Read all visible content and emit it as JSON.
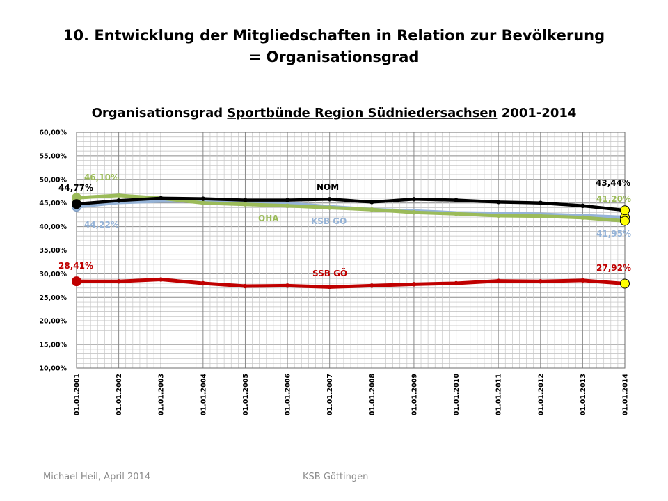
{
  "slide": {
    "title_line1": "10. Entwicklung der Mitgliedschaften in Relation zur Bevölkerung",
    "title_line2": "= Organisationsgrad"
  },
  "footer": {
    "author": "Michael Heil, April 2014",
    "org": "KSB Göttingen"
  },
  "chart_data": {
    "type": "line",
    "title_prefix": "Organisationsgrad ",
    "title_underlined": "Sportbünde Region Südniedersachsen",
    "title_suffix": " 2001-2014",
    "categories": [
      "01.01.2001",
      "01.01.2002",
      "01.01.2003",
      "01.01.2004",
      "01.01.2005",
      "01.01.2006",
      "01.01.2007",
      "01.01.2008",
      "01.01.2009",
      "01.01.2010",
      "01.01.2011",
      "01.01.2012",
      "01.01.2013",
      "01.01.2014"
    ],
    "ylim": [
      10,
      60
    ],
    "ytick_step": 5,
    "ytick_labels": [
      "10,00%",
      "15,00%",
      "20,00%",
      "25,00%",
      "30,00%",
      "35,00%",
      "40,00%",
      "45,00%",
      "50,00%",
      "55,00%",
      "60,00%"
    ],
    "grid": true,
    "series": [
      {
        "name": "SSB GÖ",
        "color": "#c00000",
        "marker_end_color": "#ffff00",
        "values": [
          28.41,
          28.4,
          28.8,
          28.0,
          27.4,
          27.5,
          27.2,
          27.5,
          27.8,
          28.0,
          28.5,
          28.4,
          28.6,
          27.92
        ],
        "start_label": "28,41%",
        "end_label": "27,92%"
      },
      {
        "name": "KSB GÖ",
        "color": "#95b3d7",
        "marker_end_color": "#ffff00",
        "values": [
          44.22,
          45.1,
          45.4,
          45.5,
          45.0,
          44.9,
          44.2,
          43.6,
          43.3,
          42.9,
          42.8,
          42.6,
          42.3,
          41.95
        ],
        "start_label": "44,22%",
        "end_label": "41,95%"
      },
      {
        "name": "OHA",
        "color": "#9bbb59",
        "marker_end_color": "#ffff00",
        "values": [
          46.1,
          46.6,
          46.0,
          45.0,
          44.7,
          44.4,
          44.0,
          43.6,
          43.0,
          42.7,
          42.3,
          42.2,
          41.9,
          41.2
        ],
        "start_label": "46,10%",
        "end_label": "41,20%"
      },
      {
        "name": "NOM",
        "color": "#000000",
        "marker_end_color": "#ffff00",
        "values": [
          44.77,
          45.5,
          46.0,
          45.9,
          45.6,
          45.6,
          45.8,
          45.2,
          45.8,
          45.6,
          45.2,
          45.0,
          44.4,
          43.44
        ],
        "start_label": "44,77%",
        "end_label": "43,44%"
      }
    ]
  }
}
